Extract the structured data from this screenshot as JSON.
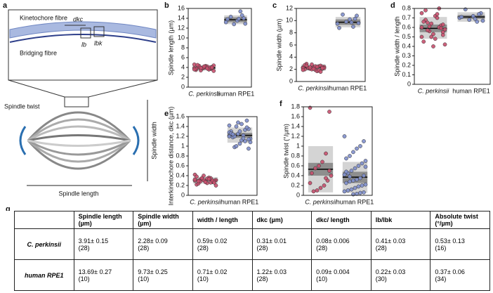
{
  "figure_a": {
    "panel": "a",
    "kinetochore": "Kinetochore fibre",
    "dkc": "dkc",
    "lb": "lb",
    "lbk": "lbk",
    "bridging": "Bridging fibre",
    "twist": "Spindle twist",
    "width": "Spindle width",
    "length": "Spindle length"
  },
  "chart_data": [
    {
      "type": "strip",
      "panel": "b",
      "ylabel": "Spindle length (µm)",
      "categories": [
        "C. perkinsii",
        "human RPE1"
      ],
      "ylim": [
        0,
        16
      ],
      "yticks": [
        0,
        2,
        4,
        6,
        8,
        10,
        12,
        14,
        16
      ],
      "groups": [
        {
          "color": "#c8506e",
          "mean": 3.91,
          "outer": [
            3.4,
            4.4
          ],
          "inner": [
            3.7,
            4.1
          ],
          "values": [
            3.9,
            4.1,
            3.6,
            4.3,
            3.8,
            4.0,
            3.5,
            4.4,
            3.7,
            4.2,
            3.9,
            3.4,
            4.0,
            4.6,
            3.8,
            3.6,
            4.1,
            3.9,
            4.3,
            3.7,
            3.3,
            4.0,
            3.8,
            4.2,
            3.9,
            4.5,
            3.6,
            4.0
          ]
        },
        {
          "color": "#7f8fcc",
          "mean": 13.69,
          "outer": [
            12.8,
            14.6
          ],
          "inner": [
            13.2,
            14.2
          ],
          "values": [
            13.2,
            14.0,
            15.4,
            13.5,
            12.8,
            14.3,
            13.8,
            12.9,
            14.6,
            13.9
          ]
        }
      ]
    },
    {
      "type": "strip",
      "panel": "c",
      "ylabel": "Spindle width (µm)",
      "categories": [
        "C. perkinsii",
        "human RPE1"
      ],
      "ylim": [
        0,
        12
      ],
      "yticks": [
        0,
        2,
        4,
        6,
        8,
        10,
        12
      ],
      "groups": [
        {
          "color": "#c8506e",
          "mean": 2.28,
          "outer": [
            1.8,
            2.8
          ],
          "inner": [
            2.1,
            2.45
          ],
          "values": [
            2.3,
            2.1,
            2.5,
            1.9,
            2.8,
            2.2,
            2.0,
            2.4,
            2.6,
            1.7,
            2.3,
            2.1,
            2.9,
            2.2,
            2.4,
            1.8,
            2.5,
            2.0,
            2.3,
            2.7,
            2.2,
            1.6,
            2.4,
            2.1,
            2.3,
            2.6,
            1.9,
            2.2
          ]
        },
        {
          "color": "#7f8fcc",
          "mean": 9.73,
          "outer": [
            8.9,
            10.6
          ],
          "inner": [
            9.3,
            10.2
          ],
          "values": [
            9.5,
            10.8,
            9.0,
            10.2,
            9.8,
            11.0,
            8.8,
            9.6,
            10.3,
            9.7
          ]
        }
      ]
    },
    {
      "type": "strip",
      "panel": "d",
      "ylabel": "Spindle width / length",
      "categories": [
        "C. perkinsii",
        "human RPE1"
      ],
      "ylim": [
        0,
        0.8
      ],
      "yticks": [
        0,
        0.1,
        0.2,
        0.3,
        0.4,
        0.5,
        0.6,
        0.7,
        0.8
      ],
      "groups": [
        {
          "color": "#c8506e",
          "mean": 0.59,
          "outer": [
            0.48,
            0.71
          ],
          "inner": [
            0.55,
            0.63
          ],
          "values": [
            0.6,
            0.55,
            0.8,
            0.72,
            0.5,
            0.65,
            0.45,
            0.58,
            0.62,
            0.7,
            0.4,
            0.56,
            0.68,
            0.75,
            0.52,
            0.6,
            0.48,
            0.64,
            0.57,
            0.66,
            0.42,
            0.59,
            0.74,
            0.53,
            0.61,
            0.78,
            0.5,
            0.63
          ]
        },
        {
          "color": "#7f8fcc",
          "mean": 0.71,
          "outer": [
            0.66,
            0.76
          ],
          "inner": [
            0.69,
            0.73
          ],
          "values": [
            0.7,
            0.75,
            0.66,
            0.72,
            0.68,
            0.79,
            0.71,
            0.67,
            0.74,
            0.69
          ]
        }
      ]
    },
    {
      "type": "strip",
      "panel": "e",
      "ylabel": "Interkinetochore distance, dkc (µm)",
      "categories": [
        "C. perkinsii",
        "human RPE1"
      ],
      "ylim": [
        0,
        1.6
      ],
      "yticks": [
        0,
        0.2,
        0.4,
        0.6,
        0.8,
        1,
        1.2,
        1.4,
        1.6
      ],
      "groups": [
        {
          "color": "#c8506e",
          "mean": 0.31,
          "outer": [
            0.24,
            0.37
          ],
          "inner": [
            0.29,
            0.33
          ],
          "values": [
            0.3,
            0.28,
            0.35,
            0.25,
            0.4,
            0.32,
            0.22,
            0.31,
            0.27,
            0.36,
            0.29,
            0.33,
            0.24,
            0.42,
            0.3,
            0.26,
            0.34,
            0.31,
            0.28,
            0.38,
            0.2,
            0.3,
            0.33,
            0.27,
            0.35,
            0.29,
            0.32,
            0.26
          ]
        },
        {
          "color": "#7f8fcc",
          "mean": 1.22,
          "outer": [
            1.07,
            1.38
          ],
          "inner": [
            1.17,
            1.27
          ],
          "values": [
            1.2,
            1.35,
            1.1,
            1.45,
            1.25,
            0.98,
            1.3,
            1.15,
            1.52,
            1.22,
            1.05,
            1.4,
            1.18,
            1.28,
            0.95,
            1.33,
            1.12,
            1.48,
            1.2,
            1.26,
            1.08,
            1.38,
            1.16,
            1.3,
            1.0,
            1.24,
            1.42,
            1.14
          ]
        }
      ]
    },
    {
      "type": "strip",
      "panel": "f",
      "ylabel": "Spindle twist (°/µm)",
      "categories": [
        "C. perkinsii",
        "human RPE1"
      ],
      "ylim": [
        0,
        1.8
      ],
      "yticks": [
        0,
        0.2,
        0.4,
        0.6,
        0.8,
        1,
        1.2,
        1.4,
        1.6,
        1.8
      ],
      "groups": [
        {
          "color": "#c8506e",
          "mean": 0.53,
          "outer": [
            0.06,
            1.0
          ],
          "inner": [
            0.4,
            0.66
          ],
          "values": [
            1.78,
            1.7,
            0.85,
            0.68,
            0.6,
            0.55,
            0.45,
            0.4,
            0.3,
            0.2,
            0.15,
            0.1,
            0.08,
            0.25,
            0.5,
            0.35
          ]
        },
        {
          "color": "#7f8fcc",
          "mean": 0.37,
          "outer": [
            0.05,
            0.68
          ],
          "inner": [
            0.25,
            0.48
          ],
          "values": [
            1.2,
            1.1,
            1.0,
            0.95,
            0.88,
            0.8,
            0.75,
            0.7,
            0.65,
            0.6,
            0.55,
            0.5,
            0.45,
            0.42,
            0.4,
            0.35,
            0.32,
            0.3,
            0.28,
            0.25,
            0.22,
            0.2,
            0.18,
            0.15,
            0.12,
            0.1,
            0.08,
            0.06,
            0.05,
            0.03,
            0.02,
            0.38,
            0.48,
            0.58
          ]
        }
      ]
    }
  ],
  "table": {
    "panel": "g",
    "header": [
      "Spindle length (µm)",
      "Spindle width (µm)",
      "width / length",
      "dkc (µm)",
      "dkc/ length",
      "lb/lbk",
      "Absolute twist (°/µm)"
    ],
    "rows": [
      {
        "label": "C. perkinsii",
        "cells": [
          [
            "3.91± 0.15",
            "(28)"
          ],
          [
            "2.28± 0.09",
            "(28)"
          ],
          [
            "0.59± 0.02",
            "(28)"
          ],
          [
            "0.31± 0.01",
            "(28)"
          ],
          [
            "0.08± 0.006",
            "(28)"
          ],
          [
            "0.41± 0.03",
            "(28)"
          ],
          [
            "0.53± 0.13",
            "(16)"
          ]
        ]
      },
      {
        "label": "human RPE1",
        "cells": [
          [
            "13.69± 0.27",
            "(10)"
          ],
          [
            "9.73± 0.25",
            "(10)"
          ],
          [
            "0.71± 0.02",
            "(10)"
          ],
          [
            "1.22± 0.03",
            "(28)"
          ],
          [
            "0.09± 0.004",
            "(10)"
          ],
          [
            "0.22± 0.03",
            "(30)"
          ],
          [
            "0.37± 0.06",
            "(34)"
          ]
        ]
      }
    ]
  }
}
